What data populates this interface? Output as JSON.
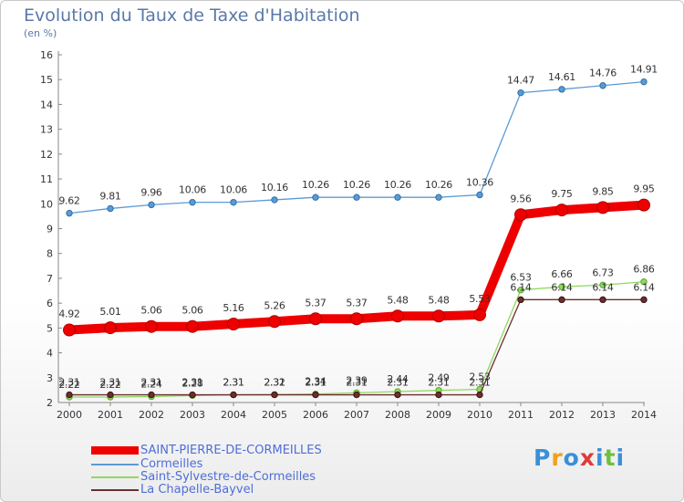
{
  "header": {
    "title": "Evolution du Taux de Taxe d'Habitation",
    "unit": "(en %)"
  },
  "chart_data": {
    "type": "line",
    "title": "Evolution du Taux de Taxe d'Habitation",
    "ylabel": "(en %)",
    "xlabel": "",
    "ylim": [
      2,
      16
    ],
    "yticks": [
      2,
      3,
      4,
      5,
      6,
      7,
      8,
      9,
      10,
      11,
      12,
      13,
      14,
      15,
      16
    ],
    "grid": false,
    "legend_position": "bottom-left",
    "categories": [
      "2000",
      "2001",
      "2002",
      "2003",
      "2004",
      "2005",
      "2006",
      "2007",
      "2008",
      "2009",
      "2010",
      "2011",
      "2012",
      "2013",
      "2014"
    ],
    "series": [
      {
        "name": "Cormeilles",
        "color": "#5b9bd5",
        "values": [
          9.62,
          9.81,
          9.96,
          10.06,
          10.06,
          10.16,
          10.26,
          10.26,
          10.26,
          10.26,
          10.36,
          14.47,
          14.61,
          14.76,
          14.91
        ],
        "labels": [
          "9.62",
          "9.81",
          "9.96",
          "10.06",
          "10.06",
          "10.16",
          "10.26",
          "10.26",
          "10.26",
          "10.26",
          "10.36",
          "14.47",
          "14.61",
          "14.76",
          "14.91"
        ]
      },
      {
        "name": "Saint-Sylvestre-de-Cormeilles",
        "color": "#90d860",
        "values": [
          2.22,
          2.22,
          2.24,
          2.28,
          2.31,
          2.32,
          2.34,
          2.39,
          2.44,
          2.49,
          2.53,
          6.53,
          6.66,
          6.73,
          6.86
        ],
        "labels": [
          "2.22",
          "2.22",
          "2.24",
          "2.28",
          "2.31",
          "2.32",
          "2.34",
          "2.39",
          "2.44",
          "2.49",
          "2.53",
          "6.53",
          "6.66",
          "6.73",
          "6.86"
        ]
      },
      {
        "name": "La Chapelle-Bayvel",
        "color": "#6b2e2e",
        "values": [
          2.31,
          2.31,
          2.31,
          2.31,
          2.31,
          2.31,
          2.31,
          2.31,
          2.31,
          2.31,
          2.31,
          6.14,
          6.14,
          6.14,
          6.14
        ],
        "labels": [
          "2.31",
          "2.31",
          "2.31",
          "2.31",
          "2.31",
          "2.31",
          "2.31",
          "2.31",
          "2.31",
          "2.31",
          "2.31",
          "6.14",
          "6.14",
          "6.14",
          "6.14"
        ]
      },
      {
        "name": "SAINT-PIERRE-DE-CORMEILLES",
        "color": "#ee0000",
        "values": [
          4.92,
          5.01,
          5.06,
          5.06,
          5.16,
          5.26,
          5.37,
          5.37,
          5.48,
          5.48,
          5.53,
          9.56,
          9.75,
          9.85,
          9.95
        ],
        "labels": [
          "4.92",
          "5.01",
          "5.06",
          "5.06",
          "5.16",
          "5.26",
          "5.37",
          "5.37",
          "5.48",
          "5.48",
          "5.53",
          "9.56",
          "9.75",
          "9.85",
          "9.95"
        ]
      }
    ]
  },
  "legend": [
    {
      "name": "SAINT-PIERRE-DE-CORMEILLES",
      "color": "#ee0000"
    },
    {
      "name": "Cormeilles",
      "color": "#5b9bd5"
    },
    {
      "name": "Saint-Sylvestre-de-Cormeilles",
      "color": "#90d860"
    },
    {
      "name": "La Chapelle-Bayvel",
      "color": "#6b2e2e"
    }
  ],
  "logo": {
    "letters": [
      "P",
      "r",
      "o",
      "x",
      "i",
      "t",
      "i"
    ],
    "colors": [
      "#3a8fd8",
      "#f0a020",
      "#3a8fd8",
      "#e03a3a",
      "#3a8fd8",
      "#6cc040",
      "#3a8fd8"
    ]
  }
}
